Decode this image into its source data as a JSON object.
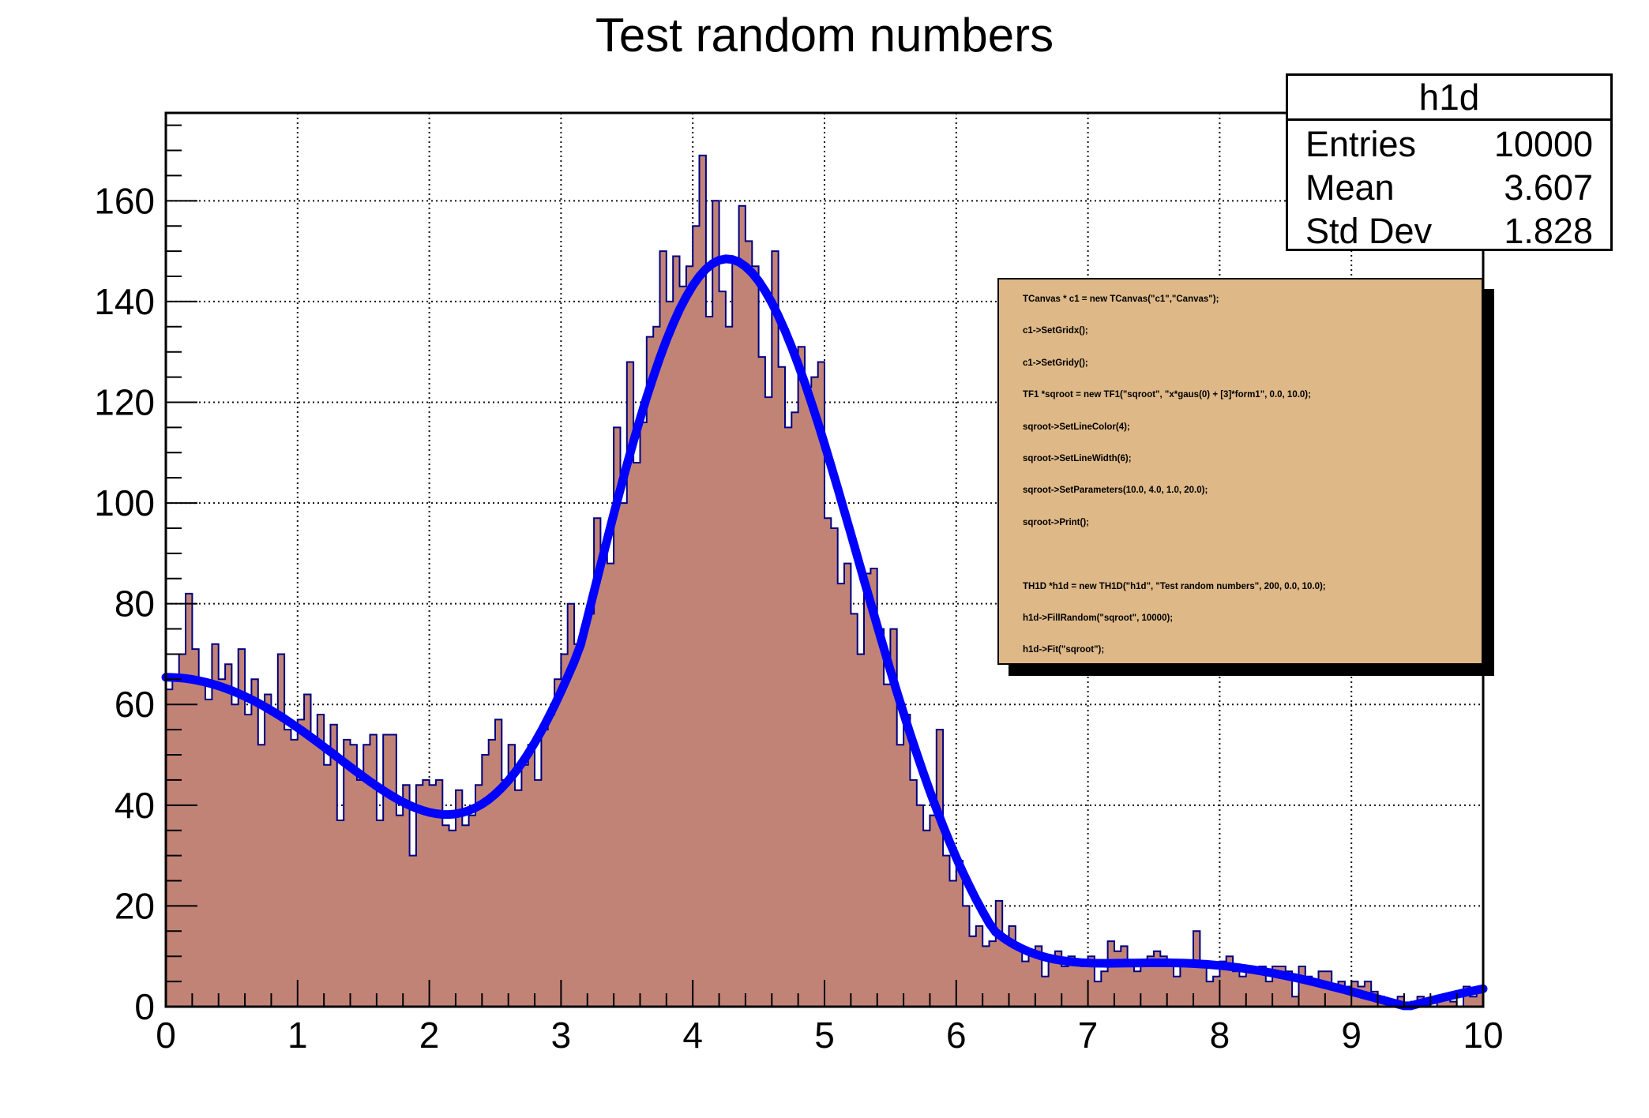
{
  "title": "Test random numbers",
  "stats_box": {
    "title": "h1d",
    "rows": [
      {
        "label": "Entries",
        "value": "10000"
      },
      {
        "label": "Mean",
        "value": "3.607"
      },
      {
        "label": "Std Dev",
        "value": "1.828"
      }
    ]
  },
  "code_pave": {
    "bg_color": "#deb887",
    "lines": [
      "TCanvas * c1 = new TCanvas(\"c1\",\"Canvas\");",
      "c1->SetGridx();",
      "c1->SetGridy();",
      "TF1 *sqroot = new TF1(\"sqroot\", \"x*gaus(0) + [3]*form1\", 0.0, 10.0);",
      "sqroot->SetLineColor(4);",
      "sqroot->SetLineWidth(6);",
      "sqroot->SetParameters(10.0, 4.0, 1.0, 20.0);",
      "sqroot->Print();",
      "",
      "TH1D *h1d = new TH1D(\"h1d\", \"Test random numbers\", 200, 0.0, 10.0);",
      "h1d->FillRandom(\"sqroot\", 10000);",
      "h1d->Fit(\"sqroot\");"
    ]
  },
  "chart_data": {
    "type": "bar",
    "subtype": "histogram-with-fit-line",
    "title": "Test random numbers",
    "xlabel": "",
    "ylabel": "",
    "bins": 200,
    "xmin": 0.0,
    "xmax": 10.0,
    "ylim": [
      0,
      177.45
    ],
    "x_ticks": [
      0,
      1,
      2,
      3,
      4,
      5,
      6,
      7,
      8,
      9,
      10
    ],
    "y_ticks": [
      0,
      20,
      40,
      60,
      80,
      100,
      120,
      140,
      160
    ],
    "grid": true,
    "legend_position": "none",
    "colors": {
      "fill": "#c28377",
      "line": "#000080",
      "grid": "#111111",
      "frame": "#000000"
    },
    "bin_values": [
      63,
      65,
      70,
      82,
      71,
      65,
      61,
      72,
      65,
      68,
      60,
      71,
      58,
      65,
      52,
      62,
      58,
      70,
      55,
      53,
      57,
      62,
      53,
      58,
      48,
      56,
      37,
      53,
      52,
      45,
      52,
      54,
      37,
      54,
      54,
      38,
      44,
      30,
      44,
      45,
      44,
      45,
      36,
      35,
      43,
      36,
      38,
      44,
      50,
      53,
      57,
      45,
      52,
      43,
      48,
      52,
      45,
      55,
      58,
      65,
      70,
      80,
      72,
      75,
      78,
      97,
      90,
      88,
      115,
      100,
      128,
      108,
      116,
      133,
      135,
      150,
      140,
      149,
      143,
      147,
      155,
      169,
      137,
      160,
      142,
      135,
      148,
      159,
      152,
      147,
      129,
      121,
      150,
      127,
      115,
      118,
      131,
      123,
      125,
      128,
      97,
      95,
      84,
      88,
      78,
      70,
      86,
      87,
      75,
      64,
      75,
      52,
      58,
      45,
      40,
      35,
      38,
      55,
      30,
      25,
      29,
      20,
      14,
      16,
      12,
      13,
      21,
      14,
      16,
      12,
      9,
      11,
      12,
      6,
      10,
      11,
      8,
      10,
      9,
      8,
      10,
      5,
      7,
      13,
      11,
      12,
      8,
      7,
      9,
      10,
      11,
      10,
      9,
      6,
      8,
      9,
      15,
      9,
      5,
      6,
      9,
      10,
      7,
      6,
      8,
      7,
      8,
      5,
      8,
      8,
      7,
      2,
      8,
      6,
      5,
      7,
      7,
      4,
      5,
      4,
      5,
      4,
      5,
      3,
      2,
      1,
      0,
      2,
      0,
      1,
      2,
      1,
      0,
      2,
      2,
      1,
      0,
      4,
      2,
      3
    ],
    "fit_curve": {
      "name": "sqroot",
      "formula": "scale*(p0*x*gaus(p1,p2) + p3*abs(sin(x)/x))",
      "params": {
        "p0": 10.0,
        "p1": 4.0,
        "p2": 1.0,
        "p3": 20.0,
        "scale": 3.27
      },
      "color": "#0000ff",
      "width": 11
    }
  }
}
